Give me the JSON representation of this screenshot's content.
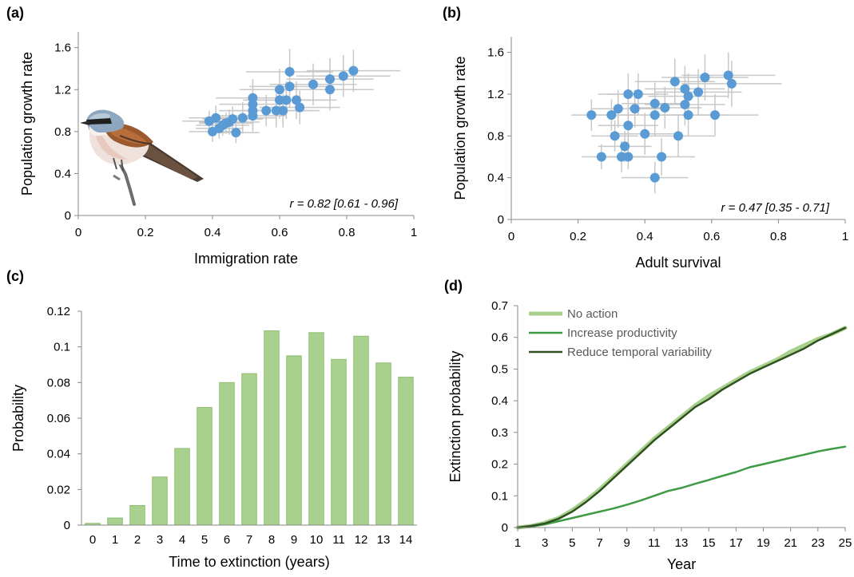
{
  "chart_data": [
    {
      "panel": "(a)",
      "type": "scatter",
      "xlabel": "Immigration rate",
      "ylabel": "Population growth rate",
      "xlim": [
        0,
        1
      ],
      "ylim": [
        0,
        1.75
      ],
      "xticks": [
        0,
        0.2,
        0.4,
        0.6,
        0.8,
        1
      ],
      "xtick_labels": [
        "0",
        "0.2",
        "0.4",
        "0.6",
        "0.8",
        "1"
      ],
      "yticks": [
        0,
        0.4,
        0.8,
        1.2,
        1.6
      ],
      "ytick_labels": [
        "0",
        "0.4",
        "0.8",
        "1.2",
        "1.6"
      ],
      "annotation": "r = 0.82 [0.61 - 0.96]",
      "grid": false,
      "point_color": "#5b9bd5",
      "errorbar_color": "#c8c8c8",
      "points": [
        {
          "x": 0.39,
          "y": 0.9,
          "xerr": 0.08,
          "yerr": 0.1
        },
        {
          "x": 0.4,
          "y": 0.8,
          "xerr": 0.07,
          "yerr": 0.1
        },
        {
          "x": 0.41,
          "y": 0.93,
          "xerr": 0.08,
          "yerr": 0.12
        },
        {
          "x": 0.42,
          "y": 0.83,
          "xerr": 0.07,
          "yerr": 0.1
        },
        {
          "x": 0.43,
          "y": 0.86,
          "xerr": 0.08,
          "yerr": 0.1
        },
        {
          "x": 0.44,
          "y": 0.88,
          "xerr": 0.08,
          "yerr": 0.1
        },
        {
          "x": 0.45,
          "y": 0.89,
          "xerr": 0.09,
          "yerr": 0.12
        },
        {
          "x": 0.46,
          "y": 0.92,
          "xerr": 0.09,
          "yerr": 0.12
        },
        {
          "x": 0.47,
          "y": 0.79,
          "xerr": 0.07,
          "yerr": 0.1
        },
        {
          "x": 0.49,
          "y": 0.93,
          "xerr": 0.1,
          "yerr": 0.15
        },
        {
          "x": 0.52,
          "y": 0.95,
          "xerr": 0.1,
          "yerr": 0.15
        },
        {
          "x": 0.52,
          "y": 1.0,
          "xerr": 0.1,
          "yerr": 0.15
        },
        {
          "x": 0.52,
          "y": 1.06,
          "xerr": 0.1,
          "yerr": 0.16
        },
        {
          "x": 0.52,
          "y": 1.12,
          "xerr": 0.11,
          "yerr": 0.18
        },
        {
          "x": 0.56,
          "y": 1.0,
          "xerr": 0.1,
          "yerr": 0.15
        },
        {
          "x": 0.59,
          "y": 1.0,
          "xerr": 0.1,
          "yerr": 0.16
        },
        {
          "x": 0.6,
          "y": 1.1,
          "xerr": 0.11,
          "yerr": 0.18
        },
        {
          "x": 0.6,
          "y": 1.2,
          "xerr": 0.12,
          "yerr": 0.2
        },
        {
          "x": 0.61,
          "y": 1.0,
          "xerr": 0.11,
          "yerr": 0.16
        },
        {
          "x": 0.62,
          "y": 1.1,
          "xerr": 0.12,
          "yerr": 0.18
        },
        {
          "x": 0.63,
          "y": 1.23,
          "xerr": 0.12,
          "yerr": 0.2
        },
        {
          "x": 0.63,
          "y": 1.37,
          "xerr": 0.13,
          "yerr": 0.22
        },
        {
          "x": 0.65,
          "y": 1.1,
          "xerr": 0.12,
          "yerr": 0.18
        },
        {
          "x": 0.66,
          "y": 1.03,
          "xerr": 0.12,
          "yerr": 0.16
        },
        {
          "x": 0.7,
          "y": 1.25,
          "xerr": 0.13,
          "yerr": 0.2
        },
        {
          "x": 0.75,
          "y": 1.2,
          "xerr": 0.13,
          "yerr": 0.2
        },
        {
          "x": 0.75,
          "y": 1.3,
          "xerr": 0.13,
          "yerr": 0.2
        },
        {
          "x": 0.79,
          "y": 1.33,
          "xerr": 0.14,
          "yerr": 0.2
        },
        {
          "x": 0.82,
          "y": 1.38,
          "xerr": 0.14,
          "yerr": 0.2
        }
      ]
    },
    {
      "panel": "(b)",
      "type": "scatter",
      "xlabel": "Adult survival",
      "ylabel": "Population growth rate",
      "xlim": [
        0,
        1
      ],
      "ylim": [
        0,
        1.75
      ],
      "xticks": [
        0,
        0.2,
        0.4,
        0.6,
        0.8,
        1
      ],
      "xtick_labels": [
        "0",
        "0.2",
        "0.4",
        "0.6",
        "0.8",
        "1"
      ],
      "yticks": [
        0,
        0.4,
        0.8,
        1.2,
        1.6
      ],
      "ytick_labels": [
        "0",
        "0.4",
        "0.8",
        "1.2",
        "1.6"
      ],
      "annotation": "r = 0.47 [0.35 - 0.71]",
      "grid": false,
      "point_color": "#5b9bd5",
      "errorbar_color": "#c8c8c8",
      "points": [
        {
          "x": 0.24,
          "y": 1.0,
          "xerr": 0.06,
          "yerr": 0.15
        },
        {
          "x": 0.27,
          "y": 0.6,
          "xerr": 0.06,
          "yerr": 0.12
        },
        {
          "x": 0.3,
          "y": 1.0,
          "xerr": 0.07,
          "yerr": 0.15
        },
        {
          "x": 0.31,
          "y": 0.8,
          "xerr": 0.07,
          "yerr": 0.15
        },
        {
          "x": 0.32,
          "y": 1.06,
          "xerr": 0.08,
          "yerr": 0.18
        },
        {
          "x": 0.33,
          "y": 0.6,
          "xerr": 0.08,
          "yerr": 0.15
        },
        {
          "x": 0.34,
          "y": 0.7,
          "xerr": 0.08,
          "yerr": 0.15
        },
        {
          "x": 0.35,
          "y": 0.9,
          "xerr": 0.09,
          "yerr": 0.18
        },
        {
          "x": 0.35,
          "y": 1.2,
          "xerr": 0.09,
          "yerr": 0.2
        },
        {
          "x": 0.35,
          "y": 0.6,
          "xerr": 0.08,
          "yerr": 0.12
        },
        {
          "x": 0.37,
          "y": 1.06,
          "xerr": 0.09,
          "yerr": 0.18
        },
        {
          "x": 0.38,
          "y": 1.2,
          "xerr": 0.09,
          "yerr": 0.2
        },
        {
          "x": 0.4,
          "y": 0.82,
          "xerr": 0.1,
          "yerr": 0.2
        },
        {
          "x": 0.43,
          "y": 0.4,
          "xerr": 0.1,
          "yerr": 0.15
        },
        {
          "x": 0.43,
          "y": 1.0,
          "xerr": 0.1,
          "yerr": 0.2
        },
        {
          "x": 0.43,
          "y": 1.11,
          "xerr": 0.1,
          "yerr": 0.2
        },
        {
          "x": 0.45,
          "y": 0.6,
          "xerr": 0.1,
          "yerr": 0.18
        },
        {
          "x": 0.46,
          "y": 1.07,
          "xerr": 0.11,
          "yerr": 0.2
        },
        {
          "x": 0.49,
          "y": 1.32,
          "xerr": 0.12,
          "yerr": 0.22
        },
        {
          "x": 0.5,
          "y": 0.8,
          "xerr": 0.11,
          "yerr": 0.2
        },
        {
          "x": 0.52,
          "y": 1.1,
          "xerr": 0.12,
          "yerr": 0.2
        },
        {
          "x": 0.52,
          "y": 1.25,
          "xerr": 0.12,
          "yerr": 0.22
        },
        {
          "x": 0.53,
          "y": 1.18,
          "xerr": 0.12,
          "yerr": 0.22
        },
        {
          "x": 0.53,
          "y": 1.0,
          "xerr": 0.12,
          "yerr": 0.2
        },
        {
          "x": 0.56,
          "y": 1.22,
          "xerr": 0.13,
          "yerr": 0.22
        },
        {
          "x": 0.58,
          "y": 1.36,
          "xerr": 0.13,
          "yerr": 0.22
        },
        {
          "x": 0.61,
          "y": 1.0,
          "xerr": 0.13,
          "yerr": 0.2
        },
        {
          "x": 0.65,
          "y": 1.38,
          "xerr": 0.14,
          "yerr": 0.22
        },
        {
          "x": 0.66,
          "y": 1.3,
          "xerr": 0.15,
          "yerr": 0.22
        }
      ]
    },
    {
      "panel": "(c)",
      "type": "bar",
      "xlabel": "Time to extinction (years)",
      "ylabel": "Probability",
      "ylim": [
        0,
        0.12
      ],
      "yticks": [
        0,
        0.02,
        0.04,
        0.06,
        0.08,
        0.1,
        0.12
      ],
      "ytick_labels": [
        "0",
        "0.02",
        "0.04",
        "0.06",
        "0.08",
        "0.1",
        "0.12"
      ],
      "categories": [
        "0",
        "1",
        "2",
        "3",
        "4",
        "5",
        "6",
        "7",
        "8",
        "9",
        "10",
        "11",
        "12",
        "13",
        "14"
      ],
      "values": [
        0.001,
        0.004,
        0.011,
        0.027,
        0.043,
        0.066,
        0.08,
        0.085,
        0.109,
        0.095,
        0.108,
        0.093,
        0.106,
        0.091,
        0.083
      ],
      "bar_color": "#a9d18e",
      "bar_edge": "#8fbc72",
      "grid": false
    },
    {
      "panel": "(d)",
      "type": "line",
      "xlabel": "Year",
      "ylabel": "Extinction probability",
      "xlim": [
        1,
        25
      ],
      "ylim": [
        0,
        0.7
      ],
      "xticks": [
        1,
        3,
        5,
        7,
        9,
        11,
        13,
        15,
        17,
        19,
        21,
        23,
        25
      ],
      "xtick_labels": [
        "1",
        "3",
        "5",
        "7",
        "9",
        "11",
        "13",
        "15",
        "17",
        "19",
        "21",
        "23",
        "25"
      ],
      "yticks": [
        0,
        0.1,
        0.2,
        0.3,
        0.4,
        0.5,
        0.6,
        0.7
      ],
      "ytick_labels": [
        "0",
        "0.1",
        "0.2",
        "0.3",
        "0.4",
        "0.5",
        "0.6",
        "0.7"
      ],
      "legend_position": "top-left",
      "grid": false,
      "x": [
        1,
        2,
        3,
        4,
        5,
        6,
        7,
        8,
        9,
        10,
        11,
        12,
        13,
        14,
        15,
        16,
        17,
        18,
        19,
        20,
        21,
        22,
        23,
        24,
        25
      ],
      "series": [
        {
          "name": "No action",
          "color": "#a9d18e",
          "width": 5,
          "values": [
            0.0,
            0.005,
            0.015,
            0.03,
            0.055,
            0.085,
            0.12,
            0.16,
            0.2,
            0.24,
            0.28,
            0.315,
            0.35,
            0.385,
            0.415,
            0.44,
            0.465,
            0.49,
            0.51,
            0.53,
            0.555,
            0.575,
            0.595,
            0.61,
            0.63
          ]
        },
        {
          "name": "Increase productivity",
          "color": "#3f9a45",
          "width": 2.5,
          "values": [
            0.0,
            0.003,
            0.01,
            0.02,
            0.03,
            0.04,
            0.05,
            0.06,
            0.072,
            0.085,
            0.1,
            0.115,
            0.125,
            0.138,
            0.15,
            0.163,
            0.175,
            0.19,
            0.2,
            0.21,
            0.22,
            0.23,
            0.24,
            0.248,
            0.255
          ]
        },
        {
          "name": "Reduce temporal variability",
          "color": "#2f5220",
          "width": 2.5,
          "values": [
            0.0,
            0.005,
            0.013,
            0.028,
            0.05,
            0.08,
            0.115,
            0.155,
            0.195,
            0.235,
            0.275,
            0.31,
            0.345,
            0.38,
            0.405,
            0.435,
            0.46,
            0.485,
            0.505,
            0.525,
            0.545,
            0.565,
            0.59,
            0.61,
            0.63
          ]
        }
      ]
    }
  ]
}
